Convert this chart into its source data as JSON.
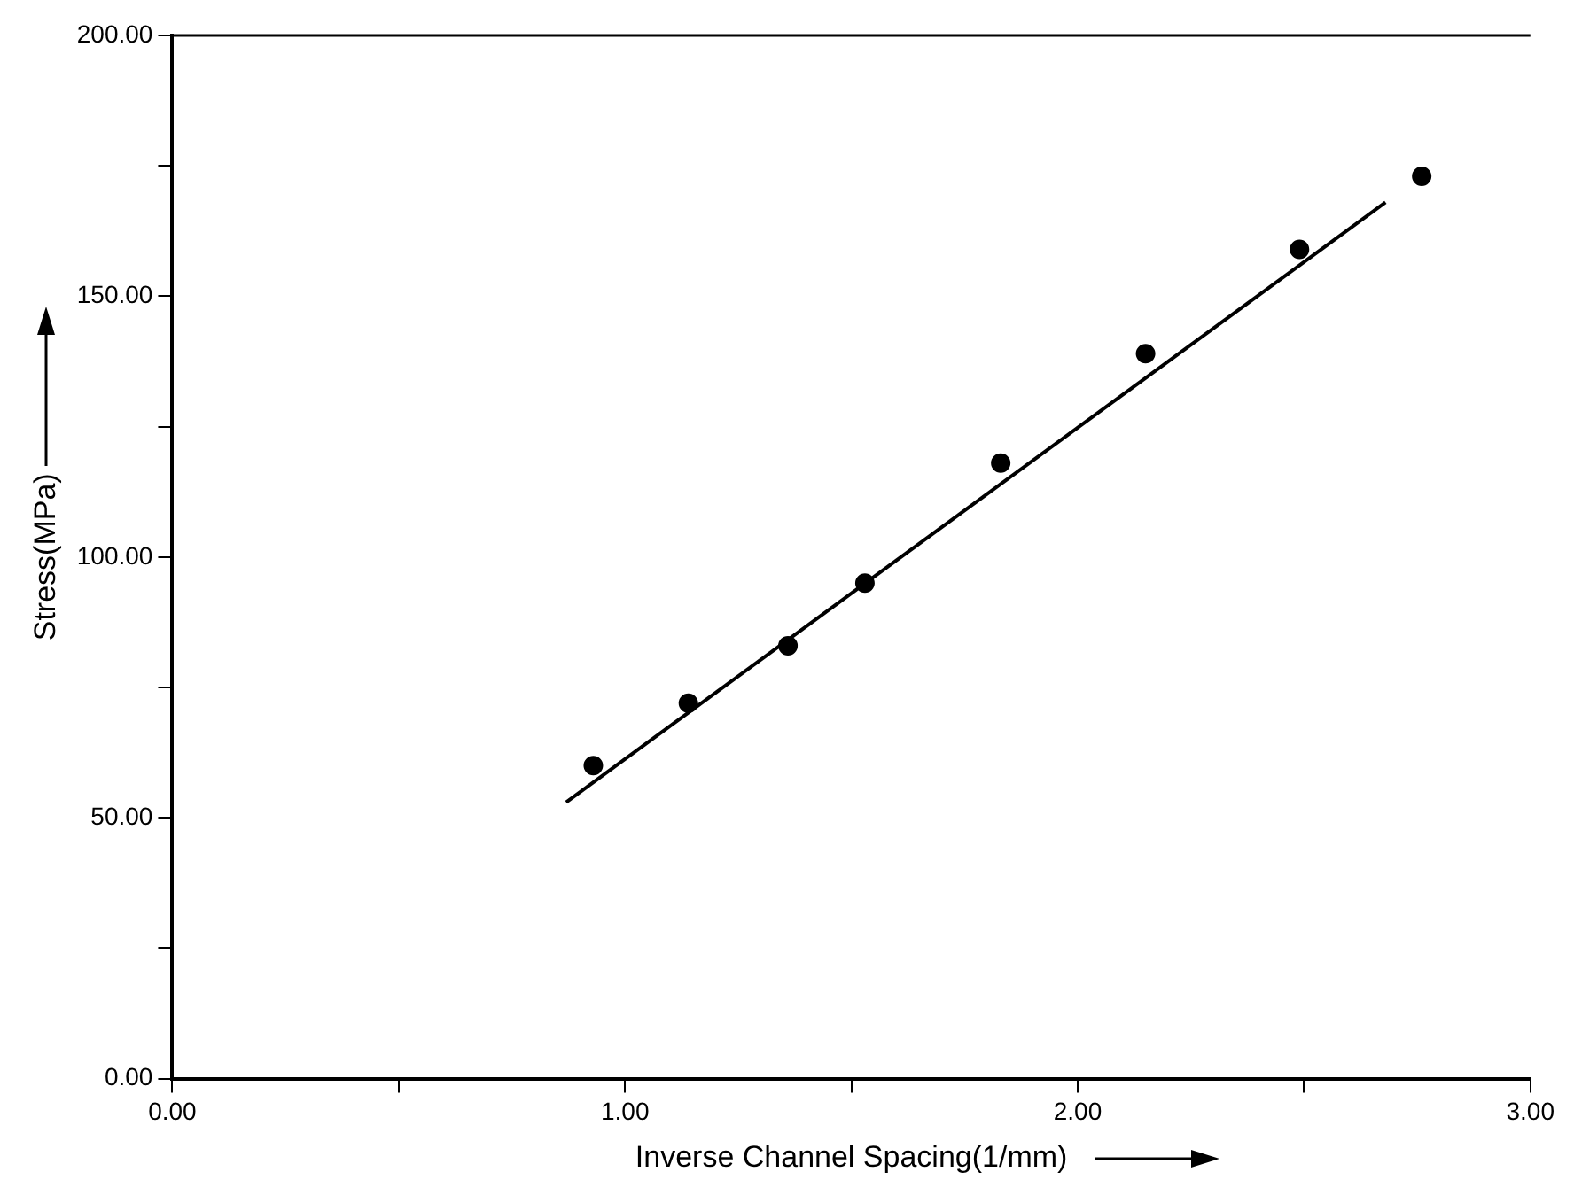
{
  "chart_data": {
    "type": "scatter",
    "xlabel": "Inverse Channel Spacing(1/mm)",
    "ylabel": "Stress(MPa)",
    "marker": "circle",
    "grid": false,
    "legend": false,
    "xlim": [
      0,
      3
    ],
    "ylim": [
      0,
      200
    ],
    "xticks": [
      {
        "value": 0,
        "label": "0.00"
      },
      {
        "value": 0.5,
        "label": null
      },
      {
        "value": 1,
        "label": "1.00"
      },
      {
        "value": 1.5,
        "label": null
      },
      {
        "value": 2,
        "label": "2.00"
      },
      {
        "value": 2.5,
        "label": null
      },
      {
        "value": 3,
        "label": "3.00"
      }
    ],
    "yticks": [
      {
        "value": 0,
        "label": "0.00"
      },
      {
        "value": 25,
        "label": null
      },
      {
        "value": 50,
        "label": "50.00"
      },
      {
        "value": 75,
        "label": null
      },
      {
        "value": 100,
        "label": "100.00"
      },
      {
        "value": 125,
        "label": null
      },
      {
        "value": 150,
        "label": "150.00"
      },
      {
        "value": 175,
        "label": null
      },
      {
        "value": 200,
        "label": "200.00"
      }
    ],
    "series": [
      {
        "color": "#000000",
        "x": [
          0.93,
          1.14,
          1.36,
          1.53,
          1.83,
          2.15,
          2.49,
          2.76
        ],
        "values": [
          60,
          72,
          83,
          95,
          118,
          139,
          159,
          173
        ]
      },
      {
        "type": "line",
        "color": "#000000",
        "line_style": "solid",
        "marker": "none",
        "x": [
          0.87,
          2.68
        ],
        "values": [
          53,
          168
        ]
      }
    ]
  }
}
